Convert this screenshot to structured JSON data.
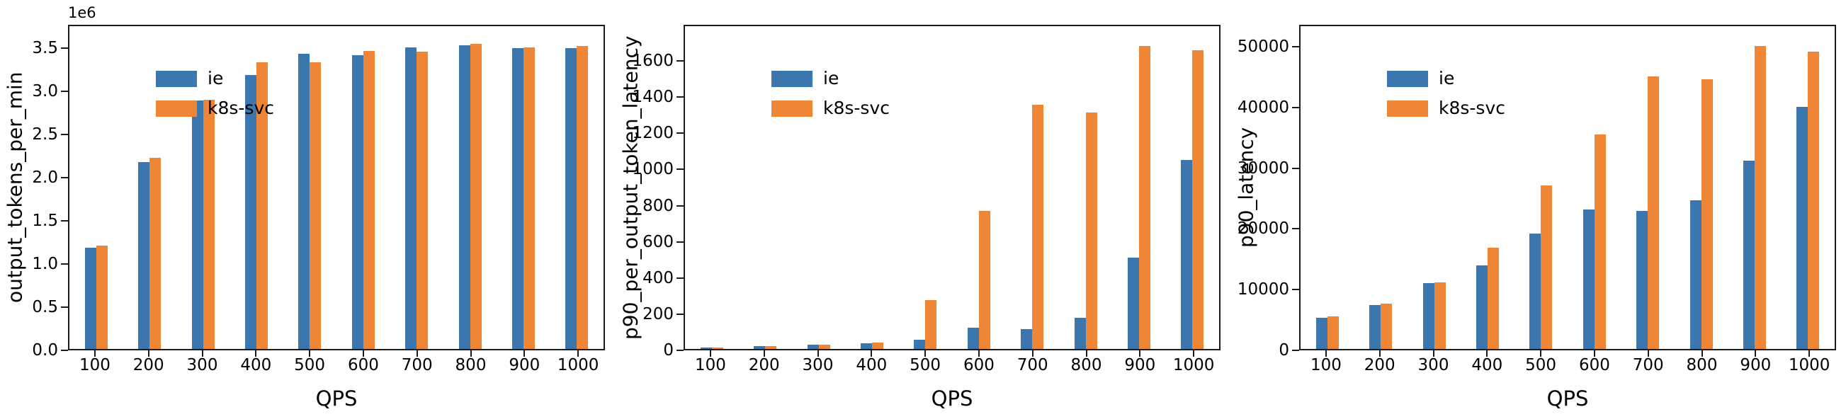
{
  "figure": {
    "background": "#ffffff",
    "axis_color": "#1c1c1c",
    "text_color": "#000000",
    "series_colors": {
      "ie": "#3b76af",
      "k8s-svc": "#ef8636"
    }
  },
  "chart_data": [
    {
      "type": "bar",
      "title": "",
      "ylabel": "output_tokens_per_min",
      "xlabel": "QPS",
      "offset_text": "1e6",
      "grid": false,
      "legend_position": "upper-left",
      "legend": [
        "ie",
        "k8s-svc"
      ],
      "categories": [
        "100",
        "200",
        "300",
        "400",
        "500",
        "600",
        "700",
        "800",
        "900",
        "1000"
      ],
      "series": [
        {
          "name": "ie",
          "color": "#3b76af",
          "values": [
            1180000,
            2180000,
            2900000,
            3200000,
            3450000,
            3430000,
            3520000,
            3550000,
            3510000,
            3510000
          ]
        },
        {
          "name": "k8s-svc",
          "color": "#ef8636",
          "values": [
            1210000,
            2230000,
            2910000,
            3350000,
            3350000,
            3480000,
            3470000,
            3560000,
            3520000,
            3540000
          ]
        }
      ],
      "ylim": [
        0,
        3770000
      ],
      "yticks": [
        {
          "label": "0.0",
          "value": 0
        },
        {
          "label": "0.5",
          "value": 500000
        },
        {
          "label": "1.0",
          "value": 1000000
        },
        {
          "label": "1.5",
          "value": 1500000
        },
        {
          "label": "2.0",
          "value": 2000000
        },
        {
          "label": "2.5",
          "value": 2500000
        },
        {
          "label": "3.0",
          "value": 3000000
        },
        {
          "label": "3.5",
          "value": 3500000
        }
      ]
    },
    {
      "type": "bar",
      "title": "",
      "ylabel": "p90_per_output_token_latency",
      "xlabel": "QPS",
      "offset_text": "",
      "grid": false,
      "legend_position": "upper-left",
      "legend": [
        "ie",
        "k8s-svc"
      ],
      "categories": [
        "100",
        "200",
        "300",
        "400",
        "500",
        "600",
        "700",
        "800",
        "900",
        "1000"
      ],
      "series": [
        {
          "name": "ie",
          "color": "#3b76af",
          "values": [
            8,
            15,
            22,
            32,
            50,
            120,
            110,
            175,
            510,
            1055
          ]
        },
        {
          "name": "k8s-svc",
          "color": "#ef8636",
          "values": [
            9,
            16,
            23,
            37,
            272,
            770,
            1360,
            1320,
            1690,
            1665
          ]
        }
      ],
      "ylim": [
        0,
        1800
      ],
      "yticks": [
        {
          "label": "0",
          "value": 0
        },
        {
          "label": "200",
          "value": 200
        },
        {
          "label": "400",
          "value": 400
        },
        {
          "label": "600",
          "value": 600
        },
        {
          "label": "800",
          "value": 800
        },
        {
          "label": "1000",
          "value": 1000
        },
        {
          "label": "1200",
          "value": 1200
        },
        {
          "label": "1400",
          "value": 1400
        },
        {
          "label": "1600",
          "value": 1600
        }
      ]
    },
    {
      "type": "bar",
      "title": "",
      "ylabel": "p90_latency",
      "xlabel": "QPS",
      "offset_text": "",
      "grid": false,
      "legend_position": "upper-left",
      "legend": [
        "ie",
        "k8s-svc"
      ],
      "categories": [
        "100",
        "200",
        "300",
        "400",
        "500",
        "600",
        "700",
        "800",
        "900",
        "1000"
      ],
      "series": [
        {
          "name": "ie",
          "color": "#3b76af",
          "values": [
            5200,
            7300,
            10900,
            13900,
            19200,
            23100,
            22900,
            24700,
            31300,
            40200
          ]
        },
        {
          "name": "k8s-svc",
          "color": "#ef8636",
          "values": [
            5400,
            7500,
            11100,
            16800,
            27100,
            35600,
            45300,
            44800,
            50300,
            49400
          ]
        }
      ],
      "ylim": [
        0,
        53600
      ],
      "yticks": [
        {
          "label": "0",
          "value": 0
        },
        {
          "label": "10000",
          "value": 10000
        },
        {
          "label": "20000",
          "value": 20000
        },
        {
          "label": "30000",
          "value": 30000
        },
        {
          "label": "40000",
          "value": 40000
        },
        {
          "label": "50000",
          "value": 50000
        }
      ]
    }
  ]
}
